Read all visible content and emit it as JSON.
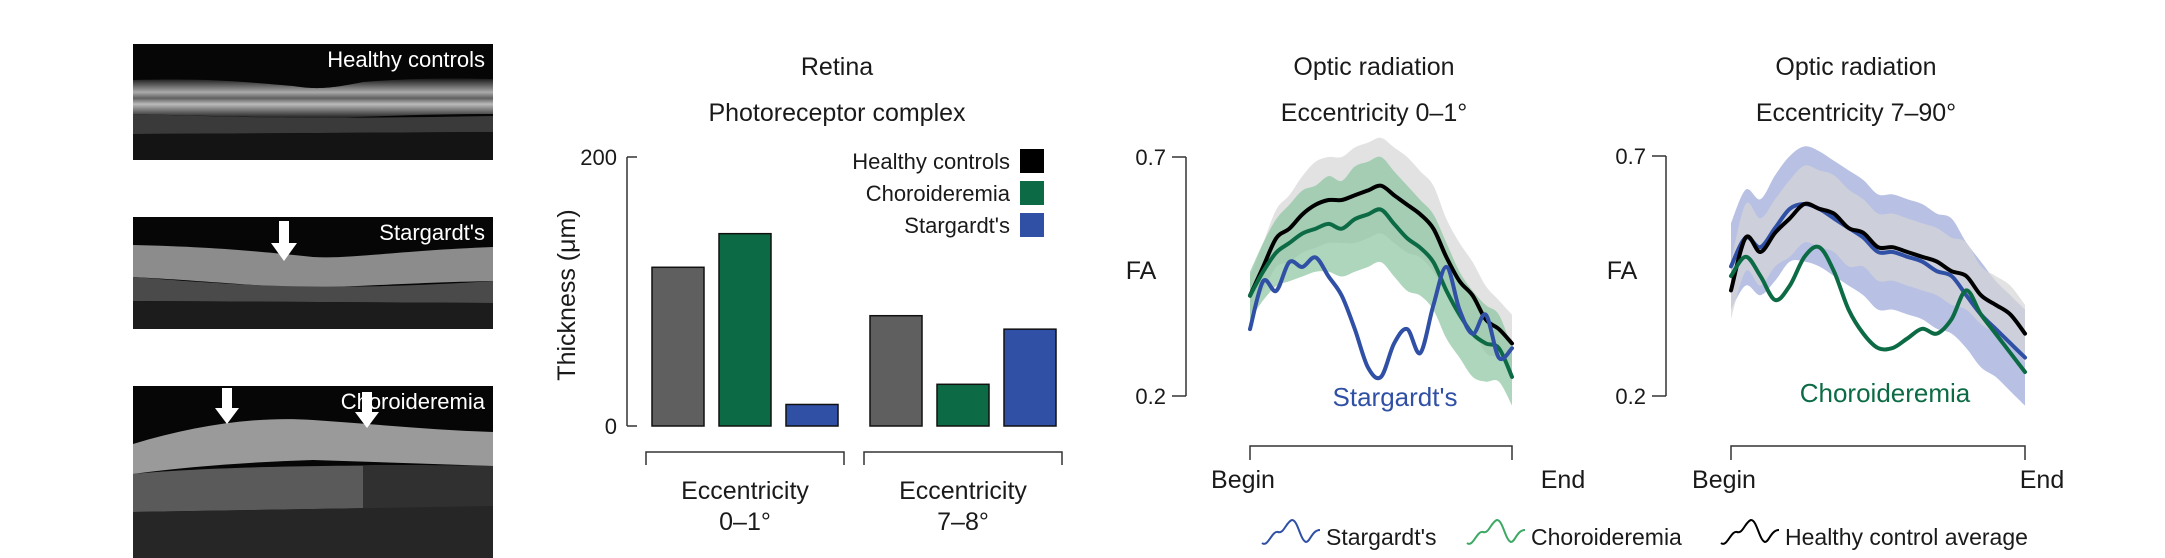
{
  "oct": {
    "healthy_label": "Healthy controls",
    "stargardt_label": "Stargardt's",
    "choroideremia_label": "Choroideremia"
  },
  "colors": {
    "healthy": "#000000",
    "healthy_bar": "#5f5f5f",
    "choroideremia": "#0c6b45",
    "stargardt": "#3050a5",
    "ribbon_healthy": "#d6d6d6",
    "ribbon_choroideremia": "#8cc59f",
    "ribbon_stargardt": "#9aa6d8"
  },
  "chart_data": [
    {
      "type": "bar",
      "title": "Retina",
      "subtitle": "Photoreceptor complex",
      "ylabel": "Thickness (μm)",
      "ylim": [
        0,
        200
      ],
      "yticks": [
        0,
        200
      ],
      "groups": [
        "Eccentricity\n0–1°",
        "Eccentricity\n7–8°"
      ],
      "legend": {
        "placement": "top-right"
      },
      "series": [
        {
          "name": "Healthy controls",
          "values": [
            118,
            82
          ]
        },
        {
          "name": "Choroideremia",
          "values": [
            143,
            31
          ]
        },
        {
          "name": "Stargardt's",
          "values": [
            16,
            72
          ]
        }
      ]
    },
    {
      "type": "line",
      "title": "Optic radiation",
      "subtitle": "Eccentricity 0–1°",
      "ylabel": "FA",
      "ylim": [
        0.2,
        0.7
      ],
      "yticks": [
        0.2,
        0.7
      ],
      "xlabel_begin": "Begin",
      "xlabel_end": "End",
      "x": [
        0,
        0.05,
        0.1,
        0.15,
        0.2,
        0.25,
        0.3,
        0.35,
        0.4,
        0.45,
        0.5,
        0.55,
        0.6,
        0.65,
        0.7,
        0.75,
        0.8,
        0.85,
        0.9,
        0.95,
        1
      ],
      "annotation": "Stargardt's",
      "series": [
        {
          "name": "Healthy control average",
          "values": [
            0.41,
            0.47,
            0.53,
            0.55,
            0.58,
            0.6,
            0.61,
            0.61,
            0.62,
            0.63,
            0.64,
            0.62,
            0.6,
            0.58,
            0.55,
            0.49,
            0.44,
            0.41,
            0.36,
            0.34,
            0.31
          ],
          "band": [
            0.04,
            0.05,
            0.06,
            0.07,
            0.08,
            0.09,
            0.09,
            0.09,
            0.1,
            0.1,
            0.1,
            0.1,
            0.1,
            0.09,
            0.09,
            0.08,
            0.08,
            0.07,
            0.07,
            0.06,
            0.06
          ]
        },
        {
          "name": "Choroideremia",
          "values": [
            0.41,
            0.46,
            0.5,
            0.52,
            0.54,
            0.55,
            0.56,
            0.55,
            0.57,
            0.58,
            0.59,
            0.56,
            0.53,
            0.51,
            0.48,
            0.42,
            0.37,
            0.33,
            0.31,
            0.3,
            0.24
          ],
          "band": [
            0.05,
            0.06,
            0.07,
            0.08,
            0.09,
            0.09,
            0.1,
            0.1,
            0.11,
            0.11,
            0.11,
            0.11,
            0.11,
            0.1,
            0.1,
            0.1,
            0.09,
            0.09,
            0.08,
            0.07,
            0.06
          ]
        },
        {
          "name": "Stargardt's",
          "values": [
            0.34,
            0.44,
            0.42,
            0.48,
            0.47,
            0.49,
            0.45,
            0.41,
            0.34,
            0.26,
            0.24,
            0.31,
            0.34,
            0.29,
            0.39,
            0.47,
            0.38,
            0.33,
            0.37,
            0.28,
            0.3
          ]
        }
      ]
    },
    {
      "type": "line",
      "title": "Optic radiation",
      "subtitle": "Eccentricity 7–90°",
      "ylabel": "FA",
      "ylim": [
        0.2,
        0.7
      ],
      "yticks": [
        0.2,
        0.7
      ],
      "xlabel_begin": "Begin",
      "xlabel_end": "End",
      "x": [
        0,
        0.05,
        0.1,
        0.15,
        0.2,
        0.25,
        0.3,
        0.35,
        0.4,
        0.45,
        0.5,
        0.55,
        0.6,
        0.65,
        0.7,
        0.75,
        0.8,
        0.85,
        0.9,
        0.95,
        1
      ],
      "annotation": "Choroideremia",
      "series": [
        {
          "name": "Healthy control average",
          "values": [
            0.42,
            0.53,
            0.5,
            0.54,
            0.57,
            0.6,
            0.59,
            0.58,
            0.55,
            0.54,
            0.51,
            0.51,
            0.5,
            0.49,
            0.48,
            0.46,
            0.45,
            0.41,
            0.39,
            0.37,
            0.33
          ],
          "band": [
            0.06,
            0.07,
            0.07,
            0.07,
            0.08,
            0.08,
            0.08,
            0.08,
            0.08,
            0.07,
            0.07,
            0.07,
            0.07,
            0.07,
            0.07,
            0.07,
            0.07,
            0.06,
            0.06,
            0.06,
            0.06
          ]
        },
        {
          "name": "Choroideremia",
          "values": [
            0.45,
            0.49,
            0.45,
            0.4,
            0.43,
            0.49,
            0.51,
            0.46,
            0.38,
            0.33,
            0.3,
            0.3,
            0.32,
            0.34,
            0.33,
            0.36,
            0.42,
            0.37,
            0.33,
            0.29,
            0.25
          ]
        },
        {
          "name": "Stargardt's",
          "values": [
            0.47,
            0.53,
            0.51,
            0.55,
            0.59,
            0.6,
            0.59,
            0.57,
            0.55,
            0.53,
            0.5,
            0.5,
            0.49,
            0.48,
            0.46,
            0.45,
            0.41,
            0.37,
            0.34,
            0.31,
            0.28
          ],
          "band": [
            0.09,
            0.1,
            0.1,
            0.11,
            0.11,
            0.12,
            0.12,
            0.12,
            0.12,
            0.12,
            0.12,
            0.12,
            0.12,
            0.12,
            0.12,
            0.12,
            0.11,
            0.11,
            0.1,
            0.1,
            0.1
          ]
        }
      ]
    }
  ],
  "legend_bottom": [
    {
      "name": "Stargardt's",
      "color": "#3050a5"
    },
    {
      "name": "Choroideremia",
      "color": "#3ea865"
    },
    {
      "name": "Healthy control average",
      "color": "#000000"
    }
  ]
}
